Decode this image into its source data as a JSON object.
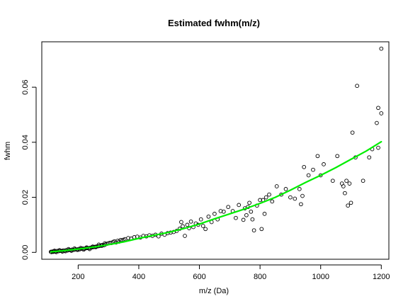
{
  "chart_data": {
    "type": "scatter",
    "title": "Estimated fwhm(m/z)",
    "xlabel": "m/z (Da)",
    "ylabel": "fwhm",
    "xlim": [
      80,
      1225
    ],
    "ylim": [
      -0.0025,
      0.0765
    ],
    "x_ticks": [
      200,
      400,
      600,
      800,
      1000,
      1200
    ],
    "x_tick_labels": [
      "200",
      "400",
      "600",
      "800",
      "1000",
      "1200"
    ],
    "y_ticks": [
      0.0,
      0.02,
      0.04,
      0.06
    ],
    "y_tick_labels": [
      "0.00",
      "0.02",
      "0.04",
      "0.06"
    ],
    "grid": false,
    "legend": "none",
    "colors": {
      "points": "#000000",
      "fit": "#00ee00",
      "axes": "#000000"
    },
    "series": [
      {
        "kind": "points",
        "x": [
          110,
          115,
          120,
          125,
          130,
          135,
          140,
          145,
          150,
          155,
          160,
          165,
          170,
          175,
          180,
          185,
          190,
          195,
          200,
          205,
          210,
          215,
          220,
          225,
          230,
          235,
          240,
          245,
          250,
          255,
          260,
          265,
          270,
          275,
          280,
          285,
          290,
          295,
          300,
          305,
          310,
          315,
          320,
          325,
          330,
          335,
          340,
          345,
          350,
          112,
          118,
          122,
          128,
          138,
          148,
          158,
          168,
          178,
          188,
          198,
          208,
          218,
          228,
          238,
          248,
          258,
          268,
          278,
          288,
          355,
          365,
          375,
          385,
          395,
          405,
          415,
          425,
          435,
          445,
          455,
          465,
          475,
          485,
          495,
          505,
          515,
          525,
          535,
          540,
          545,
          552,
          560,
          566,
          572,
          580,
          588,
          596,
          605,
          612,
          620,
          630,
          640,
          650,
          660,
          670,
          680,
          695,
          710,
          720,
          730,
          745,
          750,
          755,
          760,
          765,
          770,
          775,
          780,
          790,
          800,
          805,
          810,
          815,
          820,
          830,
          840,
          855,
          870,
          885,
          900,
          915,
          930,
          935,
          940,
          945,
          960,
          975,
          990,
          1000,
          1010,
          1040,
          1055,
          1070,
          1075,
          1080,
          1085,
          1090,
          1095,
          1100,
          1115,
          1140,
          1160,
          1170,
          1185,
          1190,
          1200,
          1200,
          1190,
          1120,
          1105
        ],
        "y": [
          0.0002,
          0.0003,
          0.0004,
          0.0003,
          0.0005,
          0.0004,
          0.0006,
          0.0005,
          0.0007,
          0.0006,
          0.0008,
          0.0007,
          0.0009,
          0.0008,
          0.001,
          0.0009,
          0.0011,
          0.001,
          0.0012,
          0.0011,
          0.0013,
          0.0014,
          0.0013,
          0.0015,
          0.0016,
          0.0015,
          0.0017,
          0.0018,
          0.0019,
          0.002,
          0.0021,
          0.0022,
          0.0023,
          0.0025,
          0.0027,
          0.0026,
          0.0029,
          0.0031,
          0.0033,
          0.0035,
          0.0034,
          0.0038,
          0.004,
          0.0036,
          0.0042,
          0.0039,
          0.0045,
          0.0043,
          0.0046,
          0.0001,
          0.0002,
          0.0006,
          0.0001,
          0.0008,
          0.0003,
          0.0004,
          0.0012,
          0.0006,
          0.0014,
          0.0009,
          0.0016,
          0.001,
          0.0018,
          0.0012,
          0.0021,
          0.0019,
          0.0028,
          0.0024,
          0.0033,
          0.0048,
          0.0052,
          0.005,
          0.0055,
          0.0057,
          0.0054,
          0.006,
          0.0058,
          0.0062,
          0.006,
          0.0064,
          0.0058,
          0.0068,
          0.0064,
          0.007,
          0.0072,
          0.0074,
          0.0078,
          0.0086,
          0.011,
          0.0095,
          0.006,
          0.01,
          0.0088,
          0.0112,
          0.0092,
          0.0105,
          0.01,
          0.012,
          0.0096,
          0.0085,
          0.013,
          0.011,
          0.014,
          0.012,
          0.015,
          0.0148,
          0.0165,
          0.015,
          0.0125,
          0.0172,
          0.0118,
          0.016,
          0.0135,
          0.0165,
          0.018,
          0.0148,
          0.012,
          0.008,
          0.017,
          0.019,
          0.0085,
          0.019,
          0.014,
          0.02,
          0.021,
          0.0185,
          0.024,
          0.021,
          0.023,
          0.02,
          0.0195,
          0.023,
          0.0175,
          0.0205,
          0.031,
          0.028,
          0.03,
          0.035,
          0.028,
          0.032,
          0.026,
          0.035,
          0.025,
          0.024,
          0.0215,
          0.026,
          0.017,
          0.025,
          0.018,
          0.0345,
          0.026,
          0.0345,
          0.0375,
          0.047,
          0.0525,
          0.074,
          0.0505,
          0.038,
          0.0605,
          0.0435
        ]
      },
      {
        "kind": "fit-line",
        "x": [
          110,
          150,
          200,
          250,
          300,
          350,
          400,
          450,
          500,
          550,
          600,
          650,
          700,
          750,
          800,
          850,
          900,
          950,
          1000,
          1050,
          1100,
          1150,
          1200
        ],
        "y": [
          0.0002,
          0.0006,
          0.0012,
          0.0019,
          0.0028,
          0.0038,
          0.0051,
          0.0062,
          0.0073,
          0.0087,
          0.0103,
          0.0122,
          0.014,
          0.0158,
          0.0178,
          0.02,
          0.0226,
          0.0254,
          0.028,
          0.0308,
          0.0338,
          0.0368,
          0.0402
        ]
      }
    ]
  }
}
